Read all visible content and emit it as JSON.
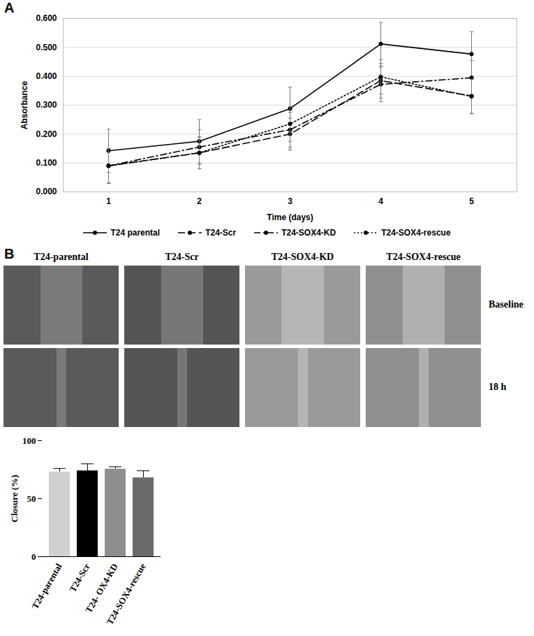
{
  "panels": [
    "A",
    "B"
  ],
  "micrographs": {
    "columns": [
      "T24-parental",
      "T24-Scr",
      "T24-SOX4-KD",
      "T24-SOX4-rescue"
    ],
    "rows": [
      "Baseline",
      "18 h"
    ]
  },
  "chart_data": [
    {
      "type": "line",
      "x_label": "Time (days)",
      "y_label": "Absorbance",
      "x": [
        1,
        2,
        3,
        4,
        5
      ],
      "xlim": [
        0.5,
        5.5
      ],
      "xticks": [
        1,
        2,
        3,
        4,
        5
      ],
      "ylim": [
        0,
        0.6
      ],
      "yticks": [
        {
          "value": 0,
          "label": "0.000"
        },
        {
          "value": 0.1,
          "label": "0.100"
        },
        {
          "value": 0.2,
          "label": "0.200"
        },
        {
          "value": 0.3,
          "label": "0.300"
        },
        {
          "value": 0.4,
          "label": "0.400"
        },
        {
          "value": 0.5,
          "label": "0.500"
        },
        {
          "value": 0.6,
          "label": "0.600"
        }
      ],
      "grid": true,
      "legend": "bottom",
      "series": [
        {
          "name": "T24 parental",
          "color": "#000000",
          "line_style": "solid",
          "marker": "circle",
          "values": [
            0.142,
            0.175,
            0.288,
            0.512,
            0.477
          ],
          "errors": [
            0.075,
            0.075,
            0.075,
            0.075,
            0.077
          ]
        },
        {
          "name": "T24-Scr",
          "color": "#000000",
          "line_style": "dashed",
          "marker": "circle",
          "values": [
            0.09,
            0.135,
            0.2,
            0.385,
            0.332
          ],
          "errors": [
            0.06,
            0.055,
            0.055,
            0.06,
            0.06
          ]
        },
        {
          "name": "T24-SOX4-KD",
          "color": "#000000",
          "line_style": "dashdot",
          "marker": "circle",
          "values": [
            0.09,
            0.155,
            0.215,
            0.372,
            0.395
          ],
          "errors": [
            0.06,
            0.06,
            0.06,
            0.06,
            0.06
          ]
        },
        {
          "name": "T24-SOX4-rescue",
          "color": "#000000",
          "line_style": "dotted",
          "marker": "circle",
          "values": [
            0.09,
            0.135,
            0.235,
            0.398,
            0.33
          ],
          "errors": [
            0.06,
            0.055,
            0.06,
            0.06,
            0.06
          ]
        }
      ]
    },
    {
      "type": "bar",
      "y_label": "Closure (%)",
      "categories": [
        "T24-parental",
        "T24-Scr",
        "T24- OX4-KD",
        "T24-SOX4-rescue"
      ],
      "values": [
        73,
        74,
        75.5,
        68
      ],
      "errors": [
        3,
        6,
        2,
        6
      ],
      "colors": [
        "#d0d0d0",
        "#000000",
        "#8e8e8e",
        "#6a6a6a"
      ],
      "ylim": [
        0,
        100
      ],
      "yticks": [
        0,
        50,
        100
      ]
    }
  ]
}
